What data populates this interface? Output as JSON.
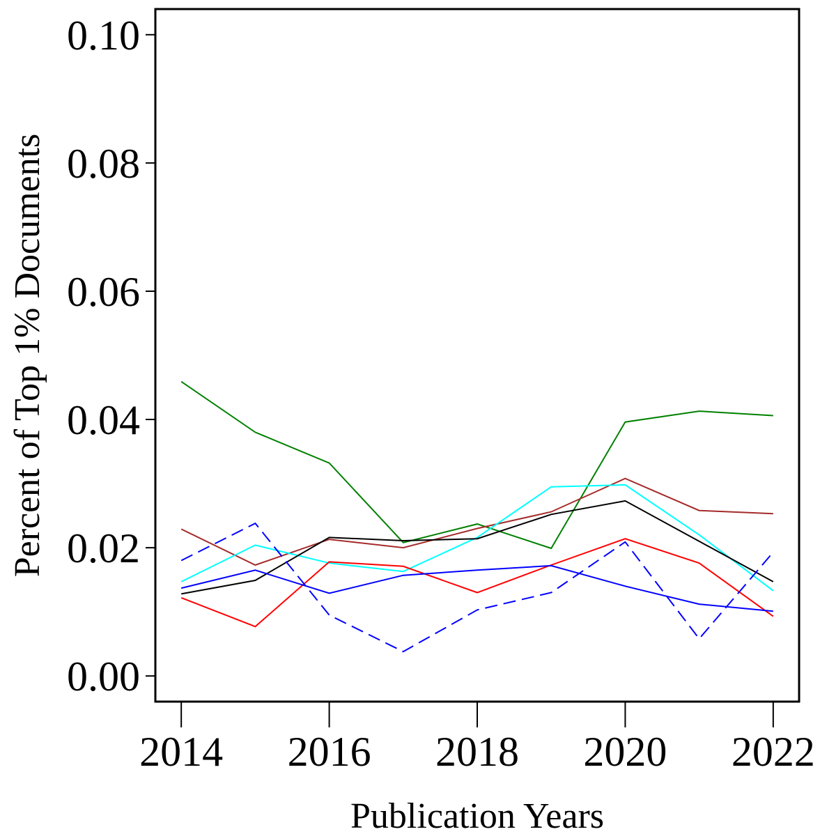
{
  "chart_data": {
    "type": "line",
    "title": "",
    "xlabel": "Publication Years",
    "ylabel": "Percent of Top 1% Documents",
    "x": [
      2014,
      2015,
      2016,
      2017,
      2018,
      2019,
      2020,
      2021,
      2022
    ],
    "xlim": [
      2013.65,
      2022.35
    ],
    "ylim": [
      -0.004,
      0.104
    ],
    "xticks": [
      2014,
      2016,
      2018,
      2020,
      2022
    ],
    "xtick_labels": [
      "2014",
      "2016",
      "2018",
      "2020",
      "2022"
    ],
    "yticks": [
      0.0,
      0.02,
      0.04,
      0.06,
      0.08,
      0.1
    ],
    "ytick_labels": [
      "0.00",
      "0.02",
      "0.04",
      "0.06",
      "0.08",
      "0.10"
    ],
    "grid": false,
    "legend": "none",
    "series": [
      {
        "color": "#008000",
        "dash": "solid",
        "values": [
          0.0459,
          0.038,
          0.0332,
          0.0208,
          0.0237,
          0.0199,
          0.0396,
          0.0413,
          0.0406
        ]
      },
      {
        "color": "#a52a2a",
        "dash": "solid",
        "values": [
          0.0229,
          0.0173,
          0.0213,
          0.02,
          0.023,
          0.0256,
          0.0308,
          0.0258,
          0.0253
        ]
      },
      {
        "color": "#00ffff",
        "dash": "solid",
        "values": [
          0.0147,
          0.0204,
          0.0176,
          0.0163,
          0.0216,
          0.0295,
          0.0298,
          0.022,
          0.0133
        ]
      },
      {
        "color": "#000000",
        "dash": "solid",
        "values": [
          0.0128,
          0.0149,
          0.0216,
          0.0211,
          0.0214,
          0.0252,
          0.0273,
          0.021,
          0.0147
        ]
      },
      {
        "color": "#ff0000",
        "dash": "solid",
        "values": [
          0.0122,
          0.0077,
          0.0178,
          0.0171,
          0.013,
          0.0173,
          0.0214,
          0.0176,
          0.0093
        ]
      },
      {
        "color": "#0000ff",
        "dash": "solid",
        "values": [
          0.0137,
          0.0165,
          0.0129,
          0.0157,
          0.0165,
          0.0172,
          0.014,
          0.0112,
          0.0101
        ]
      },
      {
        "color": "#0000ff",
        "dash": "dashed",
        "values": [
          0.018,
          0.0238,
          0.0095,
          0.0038,
          0.0103,
          0.013,
          0.0209,
          0.0058,
          0.0193
        ]
      }
    ]
  }
}
